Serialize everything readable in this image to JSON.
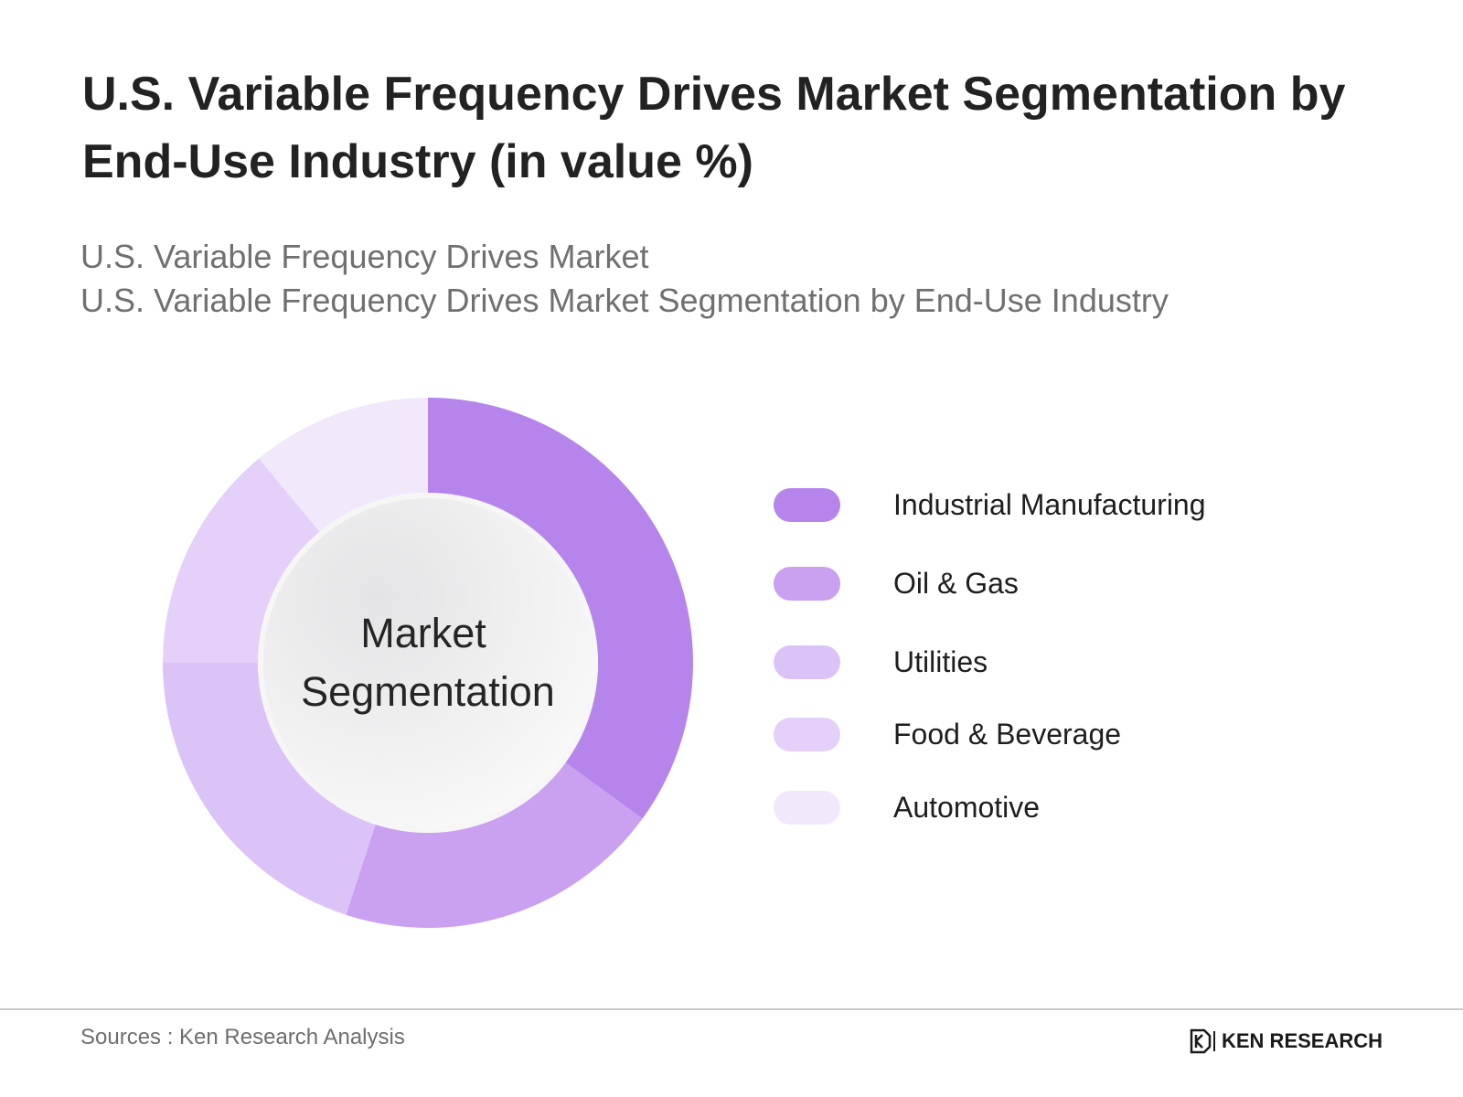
{
  "title": "U.S. Variable Frequency Drives Market Segmentation by End-Use Industry (in value %)",
  "subtitles": [
    "U.S. Variable Frequency Drives Market",
    "U.S. Variable Frequency Drives Market Segmentation by End-Use Industry"
  ],
  "chart_data": {
    "type": "pie",
    "style": "donut",
    "center_label": [
      "Market",
      "Segmentation"
    ],
    "categories": [
      "Industrial Manufacturing",
      "Oil & Gas",
      "Utilities",
      "Food & Beverage",
      "Automotive"
    ],
    "values": [
      35,
      20,
      20,
      14,
      11
    ],
    "colors": [
      "#b585ec",
      "#c9a1f0",
      "#dcc3f7",
      "#e4d0f8",
      "#f1e8fb"
    ],
    "legend_position": "right"
  },
  "footer": {
    "source": "Sources : Ken Research Analysis",
    "brand": "KEN RESEARCH"
  }
}
